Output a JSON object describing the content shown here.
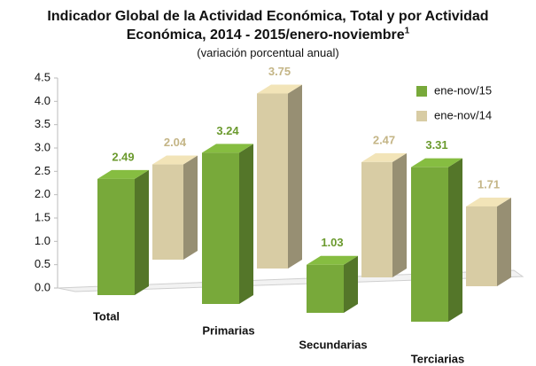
{
  "chart_data": {
    "type": "bar3d",
    "title": "Indicador Global de la Actividad Económica, Total y por Actividad Económica, 2014 - 2015/enero-noviembre",
    "title_note": "1",
    "subtitle": "(variación porcentual anual)",
    "categories": [
      "Total",
      "Primarias",
      "Secundarias",
      "Terciarias"
    ],
    "series": [
      {
        "name": "ene-nov/15",
        "color": "#78a93a",
        "values": [
          2.49,
          3.24,
          1.03,
          3.31
        ]
      },
      {
        "name": "ene-nov/14",
        "color": "#d8cca4",
        "values": [
          2.04,
          3.75,
          2.47,
          1.71
        ]
      }
    ],
    "ylim": [
      0,
      4.5
    ],
    "yticks": [
      {
        "value": 0,
        "label": "0.0"
      },
      0.5,
      {
        "value": 1,
        "label": "1.0"
      },
      1.5,
      {
        "value": 2,
        "label": "2.0"
      },
      2.5,
      {
        "value": 3,
        "label": "3.0"
      },
      3.5,
      {
        "value": 4,
        "label": "4.0"
      },
      4.5
    ],
    "legend": "top-right"
  }
}
